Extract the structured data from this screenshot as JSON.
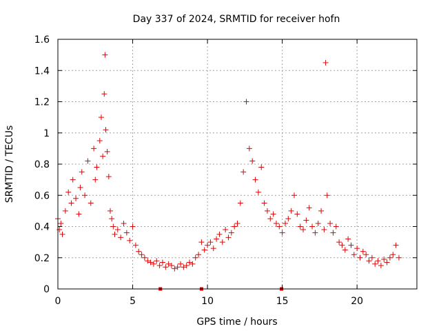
{
  "chart_data": {
    "type": "scatter",
    "title": "Day 337 of 2024, SRMTID for receiver hofn",
    "xlabel": "GPS time / hours",
    "ylabel": "SRMTID / TECUs",
    "xlim": [
      0,
      24
    ],
    "ylim": [
      0,
      1.6
    ],
    "xticks": [
      0,
      5,
      10,
      15,
      20
    ],
    "xtick_labels": [
      "0",
      "5",
      "10",
      "15",
      "20"
    ],
    "yticks": [
      0,
      0.2,
      0.4,
      0.6,
      0.8,
      1,
      1.2,
      1.4,
      1.6
    ],
    "ytick_labels": [
      "0",
      "0.2",
      "0.4",
      "0.6",
      "0.8",
      "1",
      "1.2",
      "1.4",
      "1.6"
    ],
    "grid": true,
    "marker": "+",
    "color": "#e00000",
    "gap_markers_x": [
      6.85,
      9.6,
      14.95
    ],
    "series": [
      {
        "name": "SRMTID",
        "x": [
          0.0,
          0.1,
          0.2,
          0.3,
          0.5,
          0.7,
          0.9,
          1.0,
          1.2,
          1.4,
          1.5,
          1.6,
          1.8,
          2.0,
          2.2,
          2.4,
          2.5,
          2.6,
          2.8,
          2.9,
          3.0,
          3.1,
          3.15,
          3.2,
          3.3,
          3.4,
          3.5,
          3.6,
          3.7,
          3.8,
          4.0,
          4.2,
          4.4,
          4.6,
          4.8,
          5.0,
          5.2,
          5.4,
          5.6,
          5.8,
          6.0,
          6.2,
          6.4,
          6.6,
          6.8,
          7.0,
          7.2,
          7.4,
          7.6,
          7.8,
          8.0,
          8.2,
          8.4,
          8.6,
          8.8,
          9.0,
          9.2,
          9.4,
          9.6,
          9.8,
          10.0,
          10.2,
          10.4,
          10.6,
          10.8,
          11.0,
          11.2,
          11.4,
          11.6,
          11.8,
          12.0,
          12.2,
          12.4,
          12.6,
          12.8,
          13.0,
          13.2,
          13.4,
          13.6,
          13.8,
          14.0,
          14.2,
          14.4,
          14.6,
          14.8,
          15.0,
          15.2,
          15.4,
          15.6,
          15.8,
          16.0,
          16.2,
          16.4,
          16.6,
          16.8,
          17.0,
          17.2,
          17.4,
          17.6,
          17.8,
          17.9,
          18.0,
          18.2,
          18.4,
          18.6,
          18.8,
          19.0,
          19.2,
          19.4,
          19.6,
          19.8,
          20.0,
          20.2,
          20.4,
          20.6,
          20.8,
          21.0,
          21.2,
          21.4,
          21.6,
          21.8,
          22.0,
          22.2,
          22.4,
          22.6,
          22.8
        ],
        "y": [
          0.45,
          0.38,
          0.42,
          0.35,
          0.5,
          0.62,
          0.55,
          0.7,
          0.58,
          0.48,
          0.65,
          0.75,
          0.6,
          0.82,
          0.55,
          0.9,
          0.7,
          0.78,
          0.95,
          1.1,
          0.85,
          1.25,
          1.5,
          1.02,
          0.88,
          0.72,
          0.5,
          0.45,
          0.4,
          0.35,
          0.38,
          0.33,
          0.42,
          0.36,
          0.31,
          0.4,
          0.28,
          0.24,
          0.22,
          0.2,
          0.18,
          0.17,
          0.16,
          0.18,
          0.15,
          0.17,
          0.14,
          0.16,
          0.15,
          0.13,
          0.14,
          0.16,
          0.14,
          0.15,
          0.17,
          0.16,
          0.2,
          0.22,
          0.3,
          0.25,
          0.28,
          0.3,
          0.26,
          0.32,
          0.35,
          0.3,
          0.38,
          0.33,
          0.36,
          0.4,
          0.42,
          0.55,
          0.75,
          1.2,
          0.9,
          0.82,
          0.7,
          0.62,
          0.78,
          0.55,
          0.5,
          0.45,
          0.48,
          0.42,
          0.4,
          0.36,
          0.42,
          0.45,
          0.5,
          0.6,
          0.48,
          0.4,
          0.38,
          0.44,
          0.52,
          0.4,
          0.36,
          0.42,
          0.5,
          0.38,
          1.45,
          0.6,
          0.42,
          0.36,
          0.4,
          0.3,
          0.28,
          0.25,
          0.32,
          0.28,
          0.22,
          0.26,
          0.2,
          0.24,
          0.22,
          0.18,
          0.2,
          0.16,
          0.18,
          0.15,
          0.19,
          0.17,
          0.2,
          0.22,
          0.28,
          0.2
        ]
      }
    ]
  }
}
